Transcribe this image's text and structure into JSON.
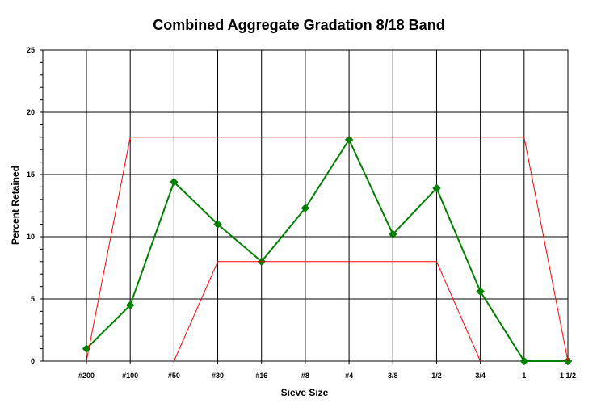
{
  "chart_data": {
    "type": "line",
    "title": "Combined Aggregate Gradation 8/18 Band",
    "xlabel": "Sieve Size",
    "ylabel": "Percent Retained",
    "categories": [
      "#200",
      "#100",
      "#50",
      "#30",
      "#16",
      "#8",
      "#4",
      "3/8",
      "1/2",
      "3/4",
      "1",
      "1 1/2"
    ],
    "ylim": [
      0,
      25
    ],
    "yticks": [
      0,
      5,
      10,
      15,
      20,
      25
    ],
    "grid": true,
    "series": [
      {
        "role": "gradation",
        "color": "#008000",
        "marker": "diamond",
        "values": [
          1.0,
          4.5,
          14.4,
          11.0,
          8.0,
          12.3,
          17.8,
          10.2,
          13.9,
          5.6,
          0.0,
          0.0
        ]
      },
      {
        "role": "upper-band",
        "color": "#ff0000",
        "values": [
          0,
          18,
          18,
          18,
          18,
          18,
          18,
          18,
          18,
          18,
          18,
          0
        ]
      },
      {
        "role": "lower-band",
        "color": "#ff0000",
        "values": [
          null,
          null,
          0,
          8,
          8,
          8,
          8,
          8,
          8,
          0,
          null,
          null
        ]
      }
    ]
  }
}
